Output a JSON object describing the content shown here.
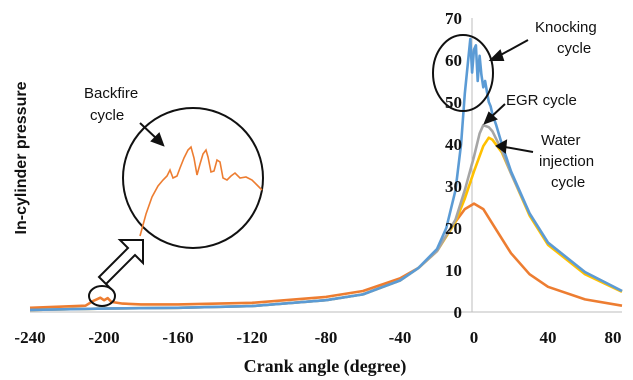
{
  "chart_data": {
    "type": "line",
    "xlabel": "Crank angle (degree)",
    "ylabel": "In-cylinder pressure",
    "xlim": [
      -240,
      80
    ],
    "ylim": [
      0,
      70
    ],
    "x_ticks": [
      "-240",
      "-200",
      "-160",
      "-120",
      "-80",
      "-40",
      "0",
      "40",
      "80"
    ],
    "y_ticks": [
      "0",
      "10",
      "20",
      "30",
      "40",
      "50",
      "60",
      "70"
    ],
    "grid": false,
    "series": [
      {
        "color": "#ed7d31",
        "x": [
          -240,
          -210,
          -206,
          -204,
          -202,
          -200,
          -198,
          -196,
          -190,
          -180,
          -160,
          -120,
          -80,
          -60,
          -40,
          -30,
          -20,
          -10,
          -5,
          0,
          5,
          10,
          20,
          30,
          40,
          60,
          80
        ],
        "y": [
          1.0,
          1.5,
          2.6,
          3.0,
          3.4,
          2.8,
          3.3,
          2.4,
          2.0,
          1.8,
          1.8,
          2.2,
          3.6,
          5.0,
          8.0,
          10.5,
          14.5,
          21.5,
          24.5,
          25.8,
          24.5,
          21.0,
          14.0,
          9.0,
          6.0,
          3.0,
          1.5
        ]
      },
      {
        "color": "#ffc000",
        "x": [
          -240,
          -200,
          -160,
          -120,
          -80,
          -60,
          -40,
          -30,
          -20,
          -10,
          -5,
          0,
          5,
          8,
          10,
          15,
          20,
          30,
          40,
          60,
          80
        ],
        "y": [
          0.5,
          0.8,
          1.0,
          1.4,
          2.8,
          4.2,
          7.5,
          10.5,
          14.5,
          21.5,
          27.0,
          33.5,
          39.5,
          41.5,
          41.0,
          38.0,
          33.0,
          23.0,
          16.0,
          9.0,
          4.8
        ]
      },
      {
        "color": "#a5a5a5",
        "x": [
          -240,
          -200,
          -160,
          -120,
          -80,
          -60,
          -40,
          -30,
          -20,
          -10,
          -5,
          0,
          3,
          5,
          8,
          10,
          15,
          20,
          30,
          40,
          60,
          80
        ],
        "y": [
          0.5,
          0.8,
          1.0,
          1.4,
          2.8,
          4.2,
          7.5,
          10.5,
          14.5,
          22.0,
          29.0,
          37.0,
          42.5,
          44.5,
          44.0,
          43.0,
          38.5,
          33.0,
          23.5,
          16.5,
          9.5,
          5.0
        ]
      },
      {
        "color": "#5b9bd5",
        "x": [
          -240,
          -200,
          -160,
          -120,
          -80,
          -60,
          -40,
          -30,
          -20,
          -15,
          -10,
          -7,
          -5,
          -3,
          -2,
          -1,
          0,
          1,
          2,
          3,
          4,
          5,
          6,
          7,
          8,
          9,
          10,
          12,
          15,
          20,
          30,
          40,
          60,
          80
        ],
        "y": [
          0.5,
          0.8,
          1.0,
          1.4,
          2.8,
          4.2,
          7.5,
          10.5,
          15.0,
          20.0,
          29.0,
          40.0,
          52.0,
          60.5,
          65.0,
          57.0,
          62.5,
          63.5,
          55.0,
          61.0,
          56.5,
          53.5,
          55.0,
          52.5,
          50.0,
          49.0,
          47.0,
          44.5,
          40.0,
          33.5,
          23.5,
          16.5,
          9.5,
          5.0
        ]
      }
    ],
    "annotations": [
      {
        "lines": [
          "Knocking",
          "cycle"
        ]
      },
      {
        "lines": [
          "EGR cycle"
        ]
      },
      {
        "lines": [
          "Water",
          "injection",
          "cycle"
        ]
      },
      {
        "lines": [
          "Backfire",
          "cycle"
        ]
      }
    ]
  }
}
